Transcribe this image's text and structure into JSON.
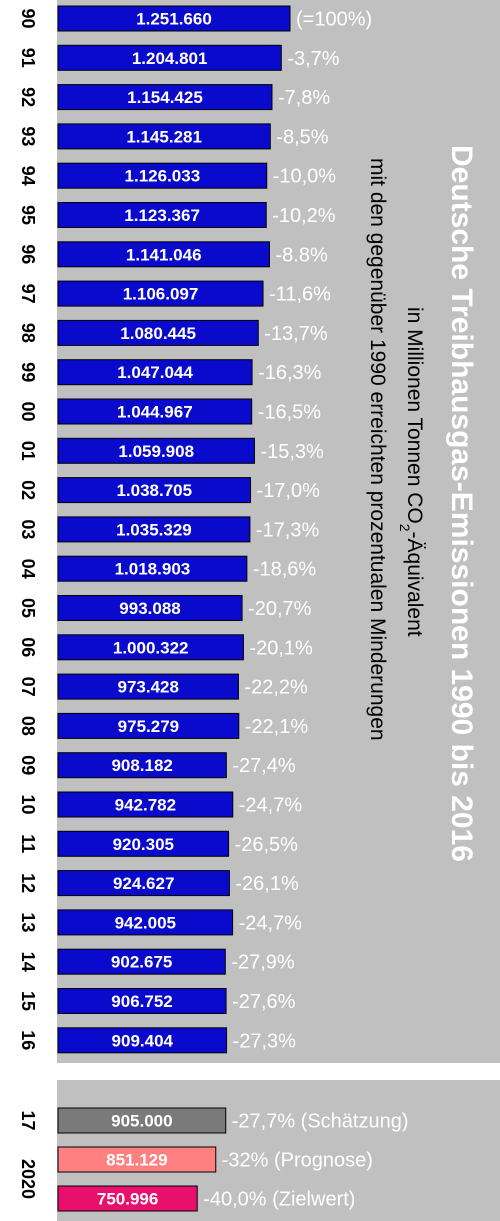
{
  "chart_data": {
    "type": "bar",
    "orientation": "horizontal",
    "title": "Deutsche Treibhausgas-Emissionen 1990 bis 2016",
    "subtitle_line1_main": "in Millionen Tonnen CO",
    "subtitle_line1_sub": "2",
    "subtitle_line1_end": "-Äquivalent",
    "subtitle_line2": "mit den gegenüber 1990 erreichten prozentualen Minderungen",
    "colors": {
      "background_panel": "#c0c0c0",
      "bar_main": "#0a0acd",
      "bar_estimate": "#7a7a7a",
      "bar_forecast": "#ff8080",
      "bar_target": "#e8106c",
      "year_2020": "#ff4040",
      "title": "#ffffff"
    },
    "series": [
      {
        "year": "90",
        "value": 1251660,
        "label": "1.251.660",
        "change": "(=100%)"
      },
      {
        "year": "91",
        "value": 1204801,
        "label": "1.204.801",
        "change": "-3,7%"
      },
      {
        "year": "92",
        "value": 1154425,
        "label": "1.154.425",
        "change": "-7,8%"
      },
      {
        "year": "93",
        "value": 1145281,
        "label": "1.145.281",
        "change": "-8,5%"
      },
      {
        "year": "94",
        "value": 1126033,
        "label": "1.126.033",
        "change": "-10,0%"
      },
      {
        "year": "95",
        "value": 1123367,
        "label": "1.123.367",
        "change": "-10,2%"
      },
      {
        "year": "96",
        "value": 1141046,
        "label": "1.141.046",
        "change": "-8.8%"
      },
      {
        "year": "97",
        "value": 1106097,
        "label": "1.106.097",
        "change": "-11,6%"
      },
      {
        "year": "98",
        "value": 1080445,
        "label": "1.080.445",
        "change": "-13,7%"
      },
      {
        "year": "99",
        "value": 1047044,
        "label": "1.047.044",
        "change": "-16,3%"
      },
      {
        "year": "00",
        "value": 1044967,
        "label": "1.044.967",
        "change": "-16,5%"
      },
      {
        "year": "01",
        "value": 1059908,
        "label": "1.059.908",
        "change": "-15,3%"
      },
      {
        "year": "02",
        "value": 1038705,
        "label": "1.038.705",
        "change": "-17,0%"
      },
      {
        "year": "03",
        "value": 1035329,
        "label": "1.035.329",
        "change": "-17,3%"
      },
      {
        "year": "04",
        "value": 1018903,
        "label": "1.018.903",
        "change": "-18,6%"
      },
      {
        "year": "05",
        "value": 993088,
        "label": "993.088",
        "change": "-20,7%"
      },
      {
        "year": "06",
        "value": 1000322,
        "label": "1.000.322",
        "change": "-20,1%"
      },
      {
        "year": "07",
        "value": 973428,
        "label": "973.428",
        "change": "-22,2%"
      },
      {
        "year": "08",
        "value": 975279,
        "label": "975.279",
        "change": "-22,1%"
      },
      {
        "year": "09",
        "value": 908182,
        "label": "908.182",
        "change": "-27,4%"
      },
      {
        "year": "10",
        "value": 942782,
        "label": "942.782",
        "change": "-24,7%"
      },
      {
        "year": "11",
        "value": 920305,
        "label": "920.305",
        "change": "-26,5%"
      },
      {
        "year": "12",
        "value": 924627,
        "label": "924.627",
        "change": "-26,1%"
      },
      {
        "year": "13",
        "value": 942005,
        "label": "942.005",
        "change": "-24,7%"
      },
      {
        "year": "14",
        "value": 902675,
        "label": "902.675",
        "change": "-27,9%"
      },
      {
        "year": "15",
        "value": 906752,
        "label": "906.752",
        "change": "-27,6%"
      },
      {
        "year": "16",
        "value": 909404,
        "label": "909.404",
        "change": "-27,3%"
      }
    ],
    "projections": [
      {
        "year": "17",
        "value": 905000,
        "label": "905.000",
        "change": "-27,7% (Schätzung)",
        "kind": "estimate"
      },
      {
        "year": "2020",
        "value": 851129,
        "label": "851.129",
        "change": "-32% (Prognose)",
        "kind": "forecast"
      },
      {
        "year": "2020",
        "value": 750996,
        "label": "750.996",
        "change": "-40,0% (Zielwert)",
        "kind": "target"
      }
    ]
  }
}
